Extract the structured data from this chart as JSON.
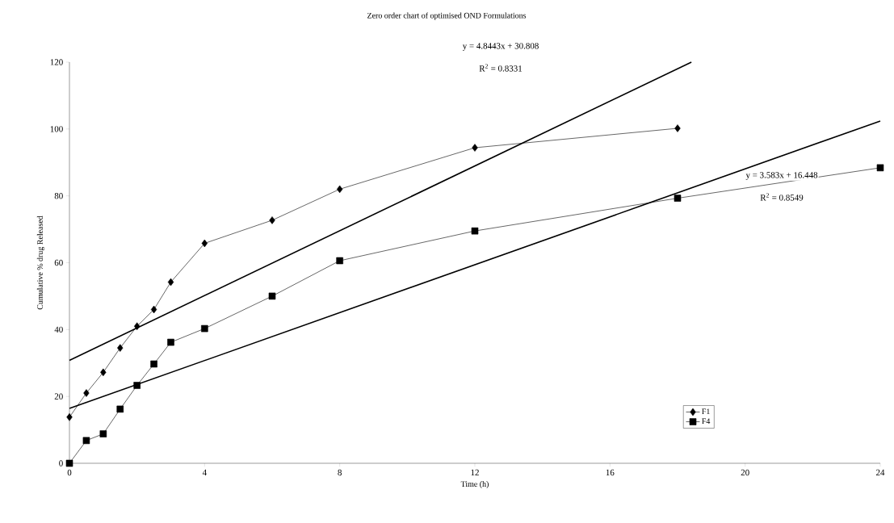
{
  "chart_data": {
    "type": "line",
    "title": "Zero order chart of optimised OND Formulations",
    "xlabel": "Time (h)",
    "ylabel": "Cumulative % drug Released",
    "series": [
      {
        "name": "F1",
        "color": "#000000",
        "marker": "diamond",
        "x": [
          0,
          0.5,
          1,
          1.5,
          2,
          2.5,
          3,
          4,
          6,
          8,
          12,
          18
        ],
        "values": [
          13.8,
          21,
          27.2,
          34.5,
          41,
          46,
          54.2,
          65.8,
          72.7,
          82,
          94.4,
          100.2
        ]
      },
      {
        "name": "F4",
        "color": "#000000",
        "marker": "square",
        "x": [
          0,
          0.5,
          1,
          1.5,
          2,
          2.5,
          3,
          4,
          6,
          8,
          12,
          18,
          24
        ],
        "values": [
          0,
          6.8,
          8.8,
          16.2,
          23.3,
          29.7,
          36.2,
          40.3,
          50,
          60.6,
          69.5,
          79.3,
          88.4
        ]
      },
      {
        "color": "#000000",
        "marker": "none",
        "x": [
          0,
          18.41
        ],
        "values": [
          30.8,
          120
        ]
      },
      {
        "color": "#000000",
        "marker": "none",
        "x": [
          0,
          24
        ],
        "values": [
          16.4,
          102.4
        ]
      }
    ],
    "annotations": [
      "y = 4.8443x + 30.808",
      "R$^{2}$ = 0.8331",
      "y = 3.583x + 16.448",
      "R$^{2}$ = 0.8549"
    ],
    "xlim": [
      0,
      24
    ],
    "xticks": [
      0,
      4,
      8,
      12,
      16,
      20,
      24
    ],
    "ylim": [
      0,
      120
    ],
    "yticks": [
      0,
      20,
      40,
      60,
      80,
      100,
      120
    ],
    "grid": false,
    "legend": "bottom right"
  }
}
